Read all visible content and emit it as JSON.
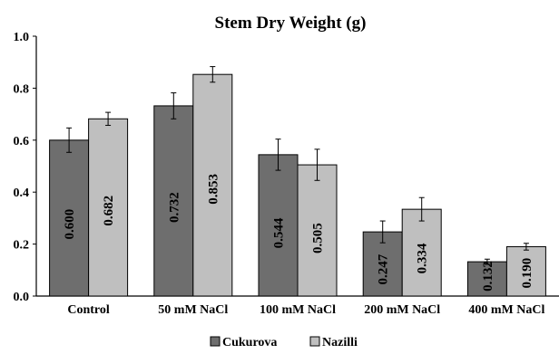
{
  "chart_data": {
    "type": "bar",
    "title": "Stem Dry Weight (g)",
    "xlabel": "",
    "ylabel": "",
    "categories": [
      "Control",
      "50 mM NaCl",
      "100 mM NaCl",
      "200 mM NaCl",
      "400 mM NaCl"
    ],
    "series": [
      {
        "name": "Cukurova",
        "color": "#6e6e6e",
        "values": [
          0.6,
          0.732,
          0.544,
          0.247,
          0.132
        ],
        "labels": [
          "0.600",
          "0.732",
          "0.544",
          "0.247",
          "0.132"
        ],
        "errors": [
          0.047,
          0.05,
          0.06,
          0.042,
          0.01
        ]
      },
      {
        "name": "Nazilli",
        "color": "#bfbfbf",
        "values": [
          0.682,
          0.853,
          0.505,
          0.334,
          0.19
        ],
        "labels": [
          "0.682",
          "0.853",
          "0.505",
          "0.334",
          "0.190"
        ],
        "errors": [
          0.025,
          0.03,
          0.06,
          0.045,
          0.013
        ]
      }
    ],
    "yticks": [
      "0.0",
      "0.2",
      "0.4",
      "0.6",
      "0.8",
      "1.0"
    ],
    "ylim": [
      0,
      1.0
    ],
    "grid": false,
    "legend_position": "bottom-center",
    "data_labels": "vertical inside bars"
  }
}
